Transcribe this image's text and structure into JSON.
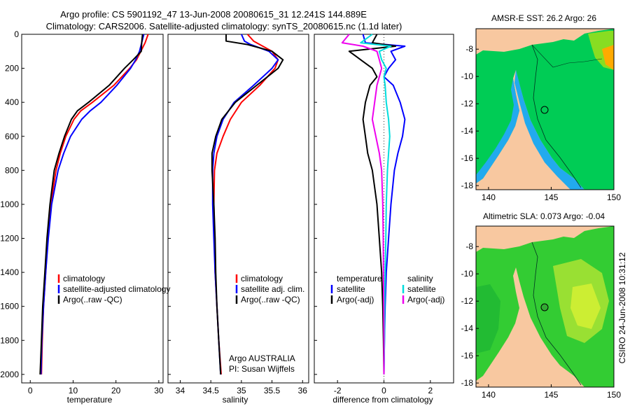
{
  "title_lines": [
    "Argo profile: CS 5901192_47 13-Jun-2008 20080615_31 12.241S 144.889E",
    "Climatology: CARS2006. Satellite-adjusted climatology: synTS_20080615.nc (1.1d later)"
  ],
  "credit": "CSIRO 24-Jun-2008 10:31:12",
  "colors": {
    "climatology": "#ff0000",
    "satellite": "#0000ff",
    "argo": "#000000",
    "satellite_salinity": "#00dddd",
    "argo_adj_salinity": "#ee00ee",
    "land": "#f8c8a0",
    "ocean": "#00cc55"
  },
  "chart_data": [
    {
      "type": "line",
      "name": "temperature-profile",
      "xlabel": "temperature",
      "xlim": [
        -2,
        31
      ],
      "ylim": [
        0,
        2050
      ],
      "xticks": [
        "0",
        "10",
        "20",
        "30"
      ],
      "yticks": [
        "0",
        "200",
        "400",
        "600",
        "800",
        "1000",
        "1200",
        "1400",
        "1600",
        "1800",
        "2000"
      ],
      "depth": [
        0,
        50,
        100,
        150,
        200,
        300,
        400,
        450,
        500,
        600,
        700,
        800,
        1000,
        1200,
        1400,
        1600,
        1800,
        2000
      ],
      "series": [
        {
          "name": "climatology",
          "values": [
            27.5,
            26.8,
            25.8,
            24.8,
            23.2,
            19.5,
            14.5,
            11.8,
            10.2,
            8.3,
            7.0,
            6.0,
            4.8,
            4.1,
            3.6,
            3.1,
            2.8,
            2.6
          ]
        },
        {
          "name": "satellite-adjusted climatology",
          "values": [
            26.5,
            26.0,
            25.5,
            24.6,
            23.4,
            20.2,
            16.5,
            14.0,
            12.0,
            9.4,
            7.8,
            6.5,
            5.0,
            4.2,
            3.6,
            3.1,
            2.7,
            2.5
          ]
        },
        {
          "name": "Argo(..raw -QC)",
          "values": [
            26.2,
            26.0,
            25.9,
            24.0,
            22.0,
            18.4,
            13.6,
            11.0,
            9.6,
            8.0,
            6.7,
            5.6,
            4.6,
            3.9,
            3.4,
            2.9,
            2.6,
            2.3
          ]
        }
      ],
      "legend": [
        "climatology",
        "satellite-adjusted climatology",
        "Argo(..raw -QC)"
      ]
    },
    {
      "type": "line",
      "name": "salinity-profile",
      "xlabel": "salinity",
      "xlim": [
        33.8,
        36.1
      ],
      "ylim": [
        0,
        2050
      ],
      "xticks": [
        "34",
        "34.5",
        "35",
        "35.5",
        "36"
      ],
      "depth": [
        0,
        40,
        60,
        100,
        150,
        200,
        300,
        400,
        500,
        600,
        700,
        800,
        1000,
        1200,
        1400,
        1600,
        1800,
        2000
      ],
      "series": [
        {
          "name": "climatology",
          "values": [
            35.1,
            35.2,
            35.3,
            35.5,
            35.6,
            35.55,
            35.3,
            35.0,
            34.82,
            34.7,
            34.6,
            34.56,
            34.55,
            34.56,
            34.57,
            34.6,
            34.63,
            34.67
          ]
        },
        {
          "name": "satellite adj. clim.",
          "values": [
            35.0,
            35.05,
            35.15,
            35.45,
            35.6,
            35.5,
            35.2,
            34.88,
            34.7,
            34.6,
            34.55,
            34.53,
            34.53,
            34.55,
            34.57,
            34.6,
            34.63,
            34.66
          ]
        },
        {
          "name": "Argo(..raw -QC)",
          "values": [
            34.75,
            34.75,
            35.1,
            35.5,
            35.68,
            35.6,
            35.25,
            34.9,
            34.68,
            34.58,
            34.52,
            34.52,
            34.55,
            34.57,
            34.58,
            34.6,
            34.63,
            34.66
          ]
        }
      ],
      "legend": [
        "climatology",
        "satellite adj. clim.",
        "Argo(..raw -QC)"
      ],
      "annotation": [
        "Argo AUSTRALIA",
        "PI: Susan Wijffels"
      ]
    },
    {
      "type": "line",
      "name": "difference-profile",
      "xlabel": "difference from climatology",
      "xlim": [
        -3,
        3
      ],
      "ylim": [
        0,
        2050
      ],
      "xticks": [
        "-2",
        "0",
        "2"
      ],
      "depth": [
        0,
        50,
        70,
        100,
        150,
        200,
        250,
        300,
        400,
        500,
        600,
        700,
        800,
        1000,
        1200,
        1400,
        1600,
        1800,
        2000
      ],
      "series": [
        {
          "name": "temperature satellite",
          "values": [
            -0.9,
            -0.8,
            0.9,
            0.3,
            0.5,
            0.2,
            0.0,
            0.4,
            0.7,
            0.9,
            0.8,
            0.6,
            0.45,
            0.3,
            0.2,
            0.1,
            0.05,
            0.02,
            0.0
          ]
        },
        {
          "name": "temperature Argo(-adj)",
          "values": [
            -0.3,
            -0.5,
            0.5,
            -1.5,
            -1.0,
            -0.5,
            -0.3,
            -0.6,
            -0.8,
            -0.9,
            -0.8,
            -0.7,
            -0.5,
            -0.3,
            -0.2,
            -0.1,
            -0.05,
            -0.02,
            0.0
          ]
        },
        {
          "name": "salinity satellite",
          "values": [
            -0.5,
            -1.0,
            0.3,
            -0.2,
            -0.1,
            0.1,
            0.0,
            0.05,
            0.1,
            0.2,
            0.25,
            0.2,
            0.15,
            0.1,
            0.08,
            0.05,
            0.03,
            0.02,
            0.0
          ]
        },
        {
          "name": "salinity Argo(-adj)",
          "values": [
            -1.5,
            -1.8,
            -0.9,
            -0.3,
            -0.2,
            -0.1,
            -0.2,
            -0.3,
            -0.4,
            -0.5,
            -0.35,
            -0.2,
            -0.1,
            -0.05,
            -0.03,
            -0.02,
            -0.01,
            0.0,
            0.0
          ]
        }
      ],
      "legend_headers": [
        "temperature",
        "salinity"
      ],
      "legend": [
        "satellite",
        "Argo(-adj)",
        "satellite",
        "Argo(-adj)"
      ]
    },
    {
      "type": "heatmap",
      "name": "sst-map",
      "title": "AMSR-E SST: 26.2 Argo: 26",
      "xticks": [
        "140",
        "145",
        "150"
      ],
      "yticks": [
        "-8",
        "-10",
        "-12",
        "-14",
        "-16",
        "-18"
      ],
      "xlim": [
        139,
        150
      ],
      "ylim": [
        -18.3,
        -6.5
      ],
      "argo_location": [
        144.889,
        -12.241
      ]
    },
    {
      "type": "heatmap",
      "name": "sla-map",
      "title": "Altimetric SLA: 0.073 Argo: -0.04",
      "xticks": [
        "140",
        "145",
        "150"
      ],
      "yticks": [
        "-8",
        "-10",
        "-12",
        "-14",
        "-16",
        "-18"
      ],
      "xlim": [
        139,
        150
      ],
      "ylim": [
        -18.3,
        -6.5
      ],
      "argo_location": [
        144.889,
        -12.241
      ]
    }
  ]
}
